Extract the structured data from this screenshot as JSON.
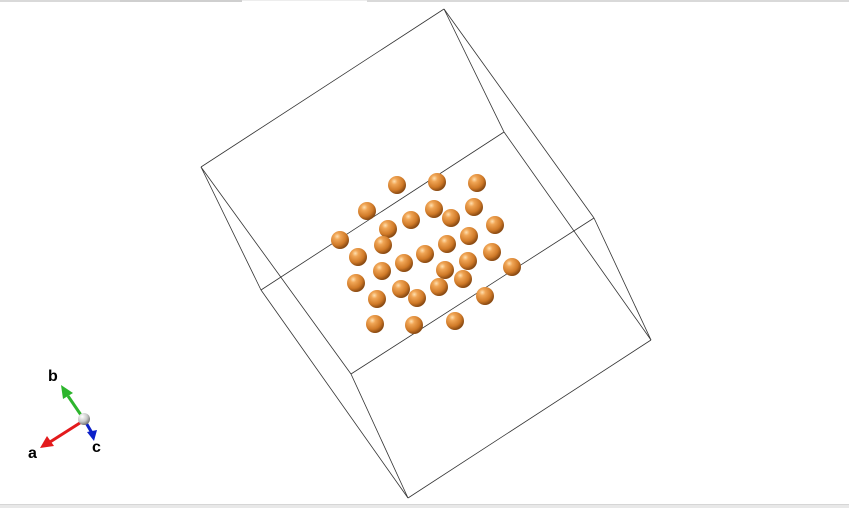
{
  "axes": {
    "a_label": "a",
    "b_label": "b",
    "c_label": "c",
    "a_color": "#e31a1c",
    "b_color": "#2db52d",
    "c_color": "#0b1fc9",
    "origin_color": "#bdbdbd"
  },
  "structure": {
    "atom_color": "#d8822e",
    "atom_count": 34,
    "cell_edge_color": "#333333"
  }
}
